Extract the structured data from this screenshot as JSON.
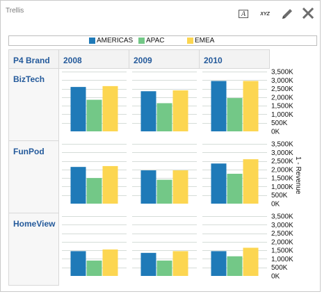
{
  "header": {
    "title": "Trellis",
    "text_tool_glyph": "A",
    "data_tool_glyph": "XYZ"
  },
  "colors": {
    "americas": "#1f7ab8",
    "apac": "#73c887",
    "emea": "#fcd651",
    "gridline": "#d5dcd8",
    "cell_border": "#d8d8d8"
  },
  "icons": [
    "text-format-icon",
    "data-format-icon",
    "pencil-icon",
    "close-icon"
  ],
  "chart_data": {
    "type": "bar",
    "layout": "trellis",
    "row_header": "P4 Brand",
    "columns": [
      "2008",
      "2009",
      "2010"
    ],
    "rows": [
      "BizTech",
      "FunPod",
      "HomeView"
    ],
    "legend": [
      "AMERICAS",
      "APAC",
      "EMEA"
    ],
    "y_label": "1 - Revenue",
    "y_ticks": [
      "3,500K",
      "3,000K",
      "2,500K",
      "2,000K",
      "1,500K",
      "1,000K",
      "500K",
      "0K"
    ],
    "ylim": [
      0,
      3500
    ],
    "unit": "K",
    "grid": true,
    "legend_placement": "top",
    "cells": [
      {
        "row": "BizTech",
        "col": "2008",
        "values": [
          2600,
          1850,
          2650
        ]
      },
      {
        "row": "BizTech",
        "col": "2009",
        "values": [
          2350,
          1650,
          2400
        ]
      },
      {
        "row": "BizTech",
        "col": "2010",
        "values": [
          2950,
          1950,
          2950
        ]
      },
      {
        "row": "FunPod",
        "col": "2008",
        "values": [
          2150,
          1500,
          2200
        ]
      },
      {
        "row": "FunPod",
        "col": "2009",
        "values": [
          1950,
          1400,
          1950
        ]
      },
      {
        "row": "FunPod",
        "col": "2010",
        "values": [
          2350,
          1750,
          2600
        ]
      },
      {
        "row": "HomeView",
        "col": "2008",
        "values": [
          1450,
          900,
          1550
        ]
      },
      {
        "row": "HomeView",
        "col": "2009",
        "values": [
          1350,
          900,
          1450
        ]
      },
      {
        "row": "HomeView",
        "col": "2010",
        "values": [
          1450,
          1150,
          1650
        ]
      }
    ]
  }
}
